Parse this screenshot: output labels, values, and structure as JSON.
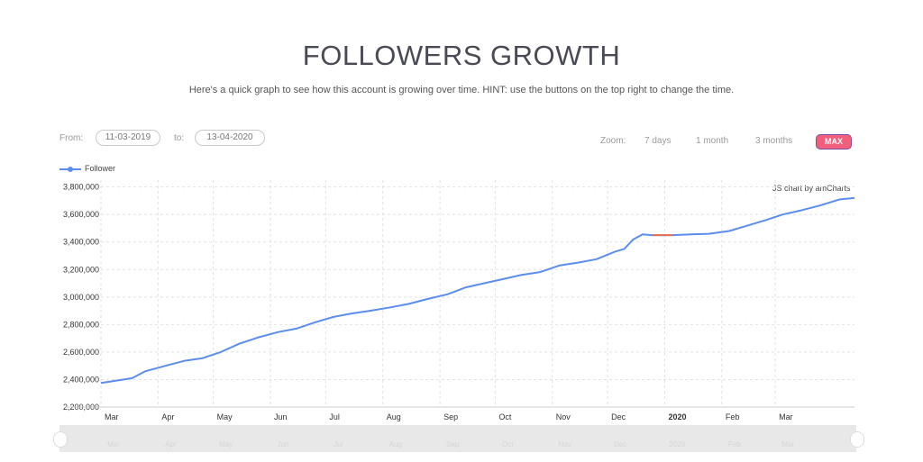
{
  "header": {
    "title": "FOLLOWERS GROWTH",
    "subtitle": "Here's a quick graph to see how this account is growing over time. HINT: use the buttons on the top right to change the time."
  },
  "range": {
    "from_label": "From:",
    "from_value": "11-03-2019",
    "to_label": "to:",
    "to_value": "13-04-2020"
  },
  "zoom": {
    "label": "Zoom:",
    "options": [
      "7 days",
      "1 month",
      "3 months"
    ],
    "active": "MAX"
  },
  "credit": "JS chart by amCharts",
  "colors": {
    "line": "#5b8def",
    "highlight": "#e8704a",
    "max_button": "#f25f7d"
  },
  "chart_data": {
    "type": "line",
    "title": "",
    "xlabel": "",
    "ylabel": "",
    "ylim": [
      2200000,
      3850000
    ],
    "y_ticks": [
      "2,200,000",
      "2,400,000",
      "2,600,000",
      "2,800,000",
      "3,000,000",
      "3,200,000",
      "3,400,000",
      "3,600,000",
      "3,800,000"
    ],
    "y_tick_values": [
      2200000,
      2400000,
      2600000,
      2800000,
      3000000,
      3200000,
      3400000,
      3600000,
      3800000
    ],
    "x_range": [
      "2019-03-01",
      "2020-04-13"
    ],
    "x_ticks": [
      {
        "label": "Mar",
        "date": "2019-03-01",
        "bold": false
      },
      {
        "label": "Apr",
        "date": "2019-04-01",
        "bold": false
      },
      {
        "label": "May",
        "date": "2019-05-01",
        "bold": false
      },
      {
        "label": "Jun",
        "date": "2019-06-01",
        "bold": false
      },
      {
        "label": "Jul",
        "date": "2019-07-01",
        "bold": false
      },
      {
        "label": "Aug",
        "date": "2019-08-01",
        "bold": false
      },
      {
        "label": "Sep",
        "date": "2019-09-01",
        "bold": false
      },
      {
        "label": "Oct",
        "date": "2019-10-01",
        "bold": false
      },
      {
        "label": "Nov",
        "date": "2019-11-01",
        "bold": false
      },
      {
        "label": "Dec",
        "date": "2019-12-01",
        "bold": false
      },
      {
        "label": "2020",
        "date": "2020-01-01",
        "bold": true
      },
      {
        "label": "Feb",
        "date": "2020-02-01",
        "bold": false
      },
      {
        "label": "Mar",
        "date": "2020-03-01",
        "bold": false
      }
    ],
    "grid": true,
    "legend": "top-left",
    "series": [
      {
        "name": "Follower",
        "x": [
          "2019-03-01",
          "2019-03-18",
          "2019-03-25",
          "2019-04-05",
          "2019-04-15",
          "2019-04-25",
          "2019-05-05",
          "2019-05-15",
          "2019-05-25",
          "2019-06-05",
          "2019-06-15",
          "2019-06-25",
          "2019-07-05",
          "2019-07-15",
          "2019-07-25",
          "2019-08-05",
          "2019-08-15",
          "2019-08-25",
          "2019-09-05",
          "2019-09-15",
          "2019-09-25",
          "2019-10-05",
          "2019-10-15",
          "2019-10-25",
          "2019-11-05",
          "2019-11-15",
          "2019-11-25",
          "2019-12-05",
          "2019-12-10",
          "2019-12-15",
          "2019-12-20",
          "2019-12-25",
          "2020-01-05",
          "2020-01-15",
          "2020-01-25",
          "2020-02-05",
          "2020-02-15",
          "2020-02-25",
          "2020-03-05",
          "2020-03-15",
          "2020-03-25",
          "2020-04-05",
          "2020-04-13"
        ],
        "values": [
          2375000,
          2410000,
          2460000,
          2500000,
          2535000,
          2555000,
          2600000,
          2660000,
          2705000,
          2745000,
          2770000,
          2815000,
          2855000,
          2880000,
          2900000,
          2925000,
          2950000,
          2985000,
          3020000,
          3070000,
          3100000,
          3130000,
          3160000,
          3180000,
          3230000,
          3250000,
          3275000,
          3330000,
          3350000,
          3420000,
          3455000,
          3450000,
          3450000,
          3455000,
          3460000,
          3480000,
          3520000,
          3560000,
          3600000,
          3630000,
          3665000,
          3710000,
          3720000
        ]
      }
    ],
    "highlight": {
      "x": [
        "2019-12-25",
        "2020-01-05"
      ],
      "values": [
        3450000,
        3450000
      ]
    }
  }
}
